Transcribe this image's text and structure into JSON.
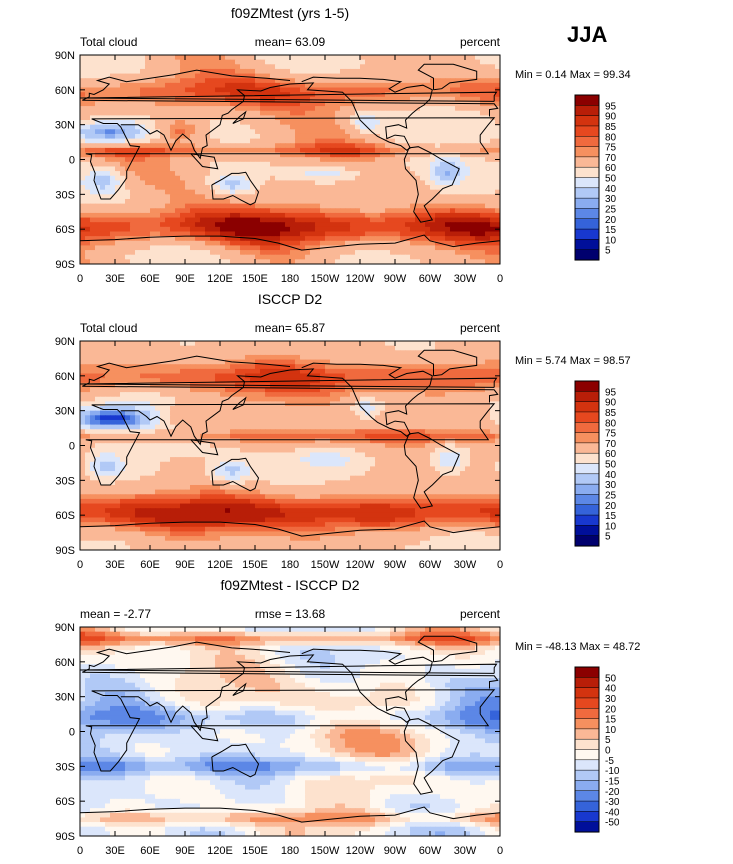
{
  "season": "JJA",
  "chart_data": [
    {
      "type": "heatmap",
      "title": "f09ZMtest (yrs 1-5)",
      "left_label": "Total cloud",
      "center_label": "mean=   63.09",
      "right_label": "percent",
      "stats": "Min =   0.14 Max =  99.34",
      "mean": 63.09,
      "min": 0.14,
      "max": 99.34,
      "x_ticks": [
        "0",
        "30E",
        "60E",
        "90E",
        "120E",
        "150E",
        "180",
        "150W",
        "120W",
        "90W",
        "60W",
        "30W",
        "0"
      ],
      "y_ticks": [
        "90N",
        "60N",
        "30N",
        "0",
        "30S",
        "60S",
        "90S"
      ],
      "colorbar_levels": [
        "95",
        "90",
        "85",
        "80",
        "75",
        "70",
        "60",
        "50",
        "40",
        "30",
        "25",
        "20",
        "15",
        "10",
        "5"
      ]
    },
    {
      "type": "heatmap",
      "title": "ISCCP D2",
      "left_label": "Total cloud",
      "center_label": "mean=   65.87",
      "right_label": "percent",
      "stats": "Min =   5.74 Max =  98.57",
      "mean": 65.87,
      "min": 5.74,
      "max": 98.57,
      "x_ticks": [
        "0",
        "30E",
        "60E",
        "90E",
        "120E",
        "150E",
        "180",
        "150W",
        "120W",
        "90W",
        "60W",
        "30W",
        "0"
      ],
      "y_ticks": [
        "90N",
        "60N",
        "30N",
        "0",
        "30S",
        "60S",
        "90S"
      ],
      "colorbar_levels": [
        "95",
        "90",
        "85",
        "80",
        "75",
        "70",
        "60",
        "50",
        "40",
        "30",
        "25",
        "20",
        "15",
        "10",
        "5"
      ]
    },
    {
      "type": "heatmap",
      "title": "f09ZMtest - ISCCP D2",
      "left_label": "mean =   -2.77",
      "center_label": "rmse =   13.68",
      "right_label": "percent",
      "stats": "Min = -48.13 Max =  48.72",
      "mean": -2.77,
      "rmse": 13.68,
      "min": -48.13,
      "max": 48.72,
      "x_ticks": [
        "0",
        "30E",
        "60E",
        "90E",
        "120E",
        "150E",
        "180",
        "150W",
        "120W",
        "90W",
        "60W",
        "30W",
        "0"
      ],
      "y_ticks": [
        "90N",
        "60N",
        "30N",
        "0",
        "30S",
        "60S",
        "90S"
      ],
      "colorbar_levels": [
        "50",
        "40",
        "30",
        "20",
        "15",
        "10",
        "5",
        "0",
        "-5",
        "-10",
        "-15",
        "-20",
        "-30",
        "-40",
        "-50"
      ]
    }
  ],
  "colors": {
    "abs_scale": [
      "#8b0000",
      "#b81e08",
      "#d3330f",
      "#e6481f",
      "#f06a3e",
      "#f6905f",
      "#fab896",
      "#fde2ce",
      "#dbe6fb",
      "#b1c9f6",
      "#8aacf0",
      "#5c87e6",
      "#3563da",
      "#1838cf",
      "#000f9a",
      "#00006e"
    ],
    "diff_scale": [
      "#8b0000",
      "#b81e08",
      "#d3330f",
      "#e6481f",
      "#f06a3e",
      "#f6905f",
      "#fab896",
      "#fde2ce",
      "#fff8f0",
      "#dbe6fb",
      "#b1c9f6",
      "#8aacf0",
      "#5c87e6",
      "#3563da",
      "#1838cf",
      "#000f9a"
    ]
  }
}
